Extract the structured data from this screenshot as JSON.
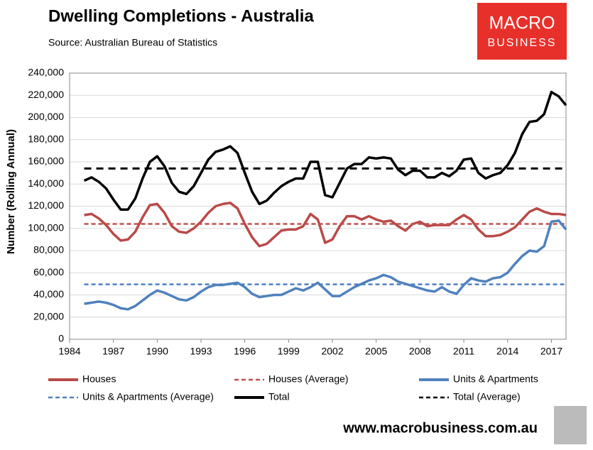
{
  "chart_data": {
    "type": "line",
    "title": "Dwelling Completions - Australia",
    "subtitle": "Source: Australian Bureau of Statistics",
    "y_label": "Number (Rolling Annual)",
    "logo": [
      "MACRO",
      "BUSINESS"
    ],
    "footer": "www.macrobusiness.com.au",
    "grid": true,
    "xlim": [
      1984,
      2018
    ],
    "xticks": [
      1984,
      1987,
      1990,
      1993,
      1996,
      1999,
      2002,
      2005,
      2008,
      2011,
      2014,
      2017
    ],
    "ylim": [
      0,
      240000
    ],
    "yticks": [
      0,
      {
        "value": 20000,
        "label": "20,000"
      },
      {
        "value": 40000,
        "label": "40,000"
      },
      {
        "value": 60000,
        "label": "60,000"
      },
      {
        "value": 80000,
        "label": "80,000"
      },
      {
        "value": 100000,
        "label": "100,000"
      },
      {
        "value": 120000,
        "label": "120,000"
      },
      {
        "value": 140000,
        "label": "140,000"
      },
      {
        "value": 160000,
        "label": "160,000"
      },
      {
        "value": 180000,
        "label": "180,000"
      },
      {
        "value": 200000,
        "label": "200,000"
      },
      {
        "value": 220000,
        "label": "220,000"
      },
      {
        "value": 240000,
        "label": "240,000"
      }
    ],
    "x": [
      1985,
      1985.5,
      1986,
      1986.5,
      1987,
      1987.5,
      1988,
      1988.5,
      1989,
      1989.5,
      1990,
      1990.5,
      1991,
      1991.5,
      1992,
      1992.5,
      1993,
      1993.5,
      1994,
      1994.5,
      1995,
      1995.5,
      1996,
      1996.5,
      1997,
      1997.5,
      1998,
      1998.5,
      1999,
      1999.5,
      2000,
      2000.5,
      2001,
      2001.5,
      2002,
      2002.5,
      2003,
      2003.5,
      2004,
      2004.5,
      2005,
      2005.5,
      2006,
      2006.5,
      2007,
      2007.5,
      2008,
      2008.5,
      2009,
      2009.5,
      2010,
      2010.5,
      2011,
      2011.5,
      2012,
      2012.5,
      2013,
      2013.5,
      2014,
      2014.5,
      2015,
      2015.5,
      2016,
      2016.5,
      2017,
      2017.5,
      2018
    ],
    "series": [
      {
        "name": "Houses",
        "color": "#b94a48",
        "values": [
          112000,
          113000,
          109000,
          103000,
          95000,
          89000,
          90000,
          97000,
          110000,
          121000,
          122000,
          114000,
          102000,
          97000,
          96000,
          100000,
          106000,
          114000,
          120000,
          122000,
          123000,
          118000,
          104000,
          92000,
          84000,
          86000,
          92000,
          98000,
          99000,
          99000,
          102000,
          113000,
          108000,
          87000,
          90000,
          102000,
          111000,
          111000,
          108000,
          111000,
          108000,
          106000,
          107000,
          102000,
          98000,
          104000,
          106000,
          102000,
          103000,
          103000,
          103000,
          108000,
          112000,
          108000,
          99000,
          93000,
          93000,
          94000,
          97000,
          101000,
          108000,
          115000,
          118000,
          115000,
          113000,
          113000,
          112000
        ]
      },
      {
        "name": "Houses (Average)",
        "color": "#c0504d",
        "average": 104000
      },
      {
        "name": "Units & Apartments",
        "color": "#4f81bd",
        "values": [
          32000,
          33000,
          34000,
          33000,
          31000,
          28000,
          27000,
          30000,
          35000,
          40000,
          44000,
          42000,
          39000,
          36000,
          35000,
          38000,
          43000,
          47000,
          49000,
          49000,
          50000,
          51000,
          47000,
          41000,
          38000,
          39000,
          40000,
          40000,
          43000,
          46000,
          44000,
          47000,
          51000,
          45000,
          39000,
          39000,
          43000,
          47000,
          50000,
          53000,
          55000,
          58000,
          56000,
          52000,
          50000,
          48000,
          46000,
          44000,
          43000,
          47000,
          43000,
          41000,
          49000,
          55000,
          53000,
          52000,
          55000,
          56000,
          60000,
          68000,
          75000,
          80000,
          79000,
          84000,
          106000,
          107000,
          99000
        ]
      },
      {
        "name": "Units & Apartments (Average)",
        "color": "#4f81bd",
        "average": 49500
      },
      {
        "name": "Total",
        "color": "#000000",
        "values": [
          143000,
          146000,
          142000,
          136000,
          126000,
          117000,
          117000,
          127000,
          145000,
          160000,
          165000,
          156000,
          141000,
          133000,
          131000,
          138000,
          150000,
          162000,
          169000,
          171000,
          174000,
          168000,
          150000,
          133000,
          122000,
          125000,
          132000,
          138000,
          142000,
          145000,
          145000,
          160000,
          160000,
          130000,
          128000,
          141000,
          154000,
          158000,
          158000,
          164000,
          163000,
          164000,
          163000,
          153000,
          148000,
          152000,
          152000,
          146000,
          146000,
          150000,
          147000,
          152000,
          162000,
          163000,
          150000,
          145000,
          148000,
          150000,
          157000,
          168000,
          185000,
          196000,
          197000,
          203000,
          223000,
          219000,
          211000
        ]
      },
      {
        "name": "Total (Average)",
        "color": "#000000",
        "average": 154000
      }
    ]
  }
}
